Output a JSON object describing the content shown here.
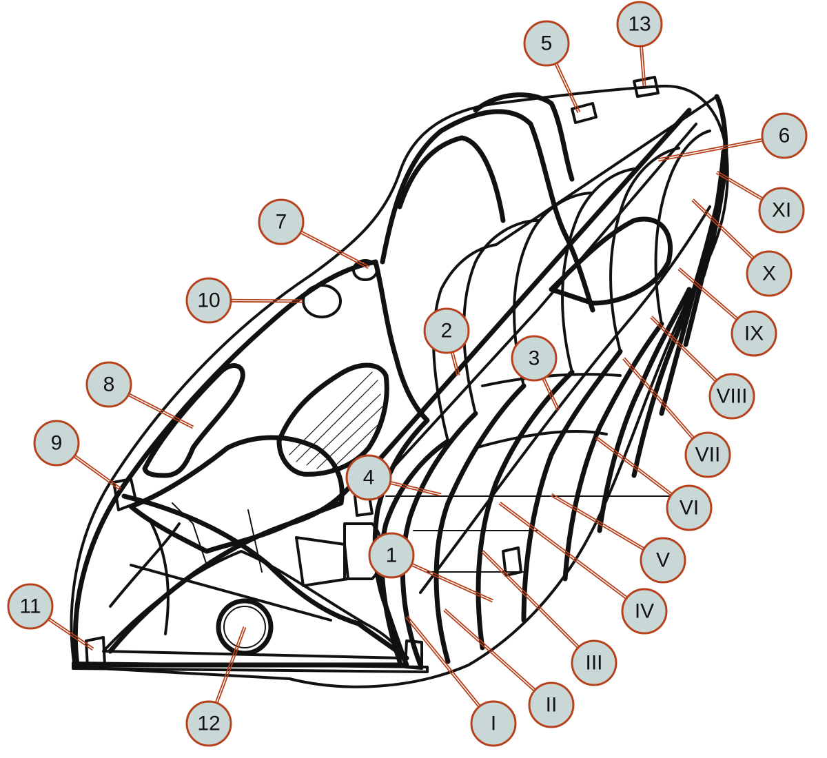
{
  "style": {
    "callout_fill": "#c9d8d6",
    "callout_stroke": "#b5421c",
    "leader_color": "#b5421c",
    "line_color": "#111111",
    "background": "#ffffff"
  },
  "callouts": [
    {
      "id": "c-1",
      "label": "1"
    },
    {
      "id": "c-2",
      "label": "2"
    },
    {
      "id": "c-3",
      "label": "3"
    },
    {
      "id": "c-4",
      "label": "4"
    },
    {
      "id": "c-5",
      "label": "5"
    },
    {
      "id": "c-6",
      "label": "6"
    },
    {
      "id": "c-7",
      "label": "7"
    },
    {
      "id": "c-8",
      "label": "8"
    },
    {
      "id": "c-9",
      "label": "9"
    },
    {
      "id": "c-10",
      "label": "10"
    },
    {
      "id": "c-11",
      "label": "11"
    },
    {
      "id": "c-12",
      "label": "12"
    },
    {
      "id": "c-13",
      "label": "13"
    },
    {
      "id": "c-I",
      "label": "I"
    },
    {
      "id": "c-II",
      "label": "II"
    },
    {
      "id": "c-III",
      "label": "III"
    },
    {
      "id": "c-IV",
      "label": "IV"
    },
    {
      "id": "c-V",
      "label": "V"
    },
    {
      "id": "c-VI",
      "label": "VI"
    },
    {
      "id": "c-VII",
      "label": "VII"
    },
    {
      "id": "c-VIII",
      "label": "VIII"
    },
    {
      "id": "c-IX",
      "label": "IX"
    },
    {
      "id": "c-X",
      "label": "X"
    },
    {
      "id": "c-XI",
      "label": "XI"
    }
  ]
}
